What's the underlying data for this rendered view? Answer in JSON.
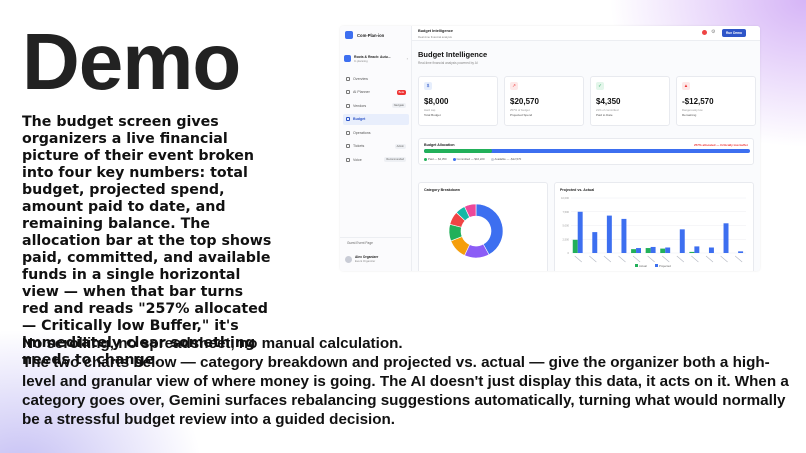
{
  "slide": {
    "title": "Demo",
    "intro": "The budget screen gives organizers a live financial picture of their event broken into four key numbers: total budget, projected spend, amount paid to date, and remaining balance. The allocation bar at the top shows paid, committed, and available funds in a single horizontal view — when that bar turns red and reads \"257% allocated — Critically low Buffer,\" it's immediately clear something needs to change.",
    "bottom_line1": "No scrolling, no spreadsheet, no manual calculation.",
    "bottom_line2": "The two charts below — category breakdown and projected vs. actual — give the organizer both a high-level and granular view of where money is going. The AI doesn't just display this data, it acts on it. When a category goes over, Gemini surfaces rebalancing suggestions automatically, turning what would normally be a stressful budget review into a guided decision."
  },
  "app": {
    "brand": "Com-Plan-ion",
    "org": {
      "name": "Roots & Reach: Autu...",
      "sub": "In planning"
    },
    "nav": [
      {
        "label": "Overview",
        "badge": "",
        "active": false
      },
      {
        "label": "AI Planner",
        "badge": "Beta",
        "active": false
      },
      {
        "label": "Vendors",
        "badge": "Navigate",
        "active": false
      },
      {
        "label": "Budget",
        "badge": "",
        "active": true
      },
      {
        "label": "Operations",
        "badge": "",
        "active": false
      },
      {
        "label": "Tickets",
        "badge": "Admin",
        "active": false
      },
      {
        "label": "Voice",
        "badge": "Recommended",
        "active": false
      }
    ],
    "guest_link": "Guest Event Page",
    "user": {
      "name": "Alex Organizer",
      "role": "Event Organizer"
    },
    "topbar": {
      "title": "Budget Intelligence",
      "subtitle": "Real-time financial analysis",
      "run_demo": "Run Demo"
    },
    "page_title": "Budget Intelligence",
    "page_subtitle": "Real-time financial analysis powered by AI",
    "kpis": [
      {
        "value": "$8,000",
        "line1": "Hard cap",
        "line2": "Total Budget",
        "icon": "$",
        "icon_bg": "#e6eefc",
        "icon_color": "#2e55c8"
      },
      {
        "value": "$20,570",
        "line1": "257% of budget",
        "line2": "Projected Spend",
        "icon": "↗",
        "icon_bg": "#fde8e8",
        "icon_color": "#e33"
      },
      {
        "value": "$4,350",
        "line1": "21% of committed",
        "line2": "Paid to Date",
        "icon": "✓",
        "icon_bg": "#e3f6ea",
        "icon_color": "#22a05a"
      },
      {
        "value": "-$12,570",
        "line1": "Dangerously low",
        "line2": "Remaining",
        "icon": "▲",
        "icon_bg": "#fde8e8",
        "icon_color": "#e33"
      }
    ],
    "allocation": {
      "title": "Budget Allocation",
      "warning": "257% allocated — Critically low buffer",
      "paid_fraction": 0.21,
      "legend": [
        "Paid — $4,350",
        "Committed — $16,220",
        "Available — -$12,570"
      ],
      "colors": {
        "paid": "#22b05a",
        "committed": "#3d6ff0",
        "available": "#d0d4dc"
      }
    },
    "category_breakdown": {
      "title": "Category Breakdown",
      "slices": [
        {
          "value": 42,
          "color": "#3d6ff0"
        },
        {
          "value": 15,
          "color": "#8b5cf6"
        },
        {
          "value": 12,
          "color": "#f59e0b"
        },
        {
          "value": 10,
          "color": "#22b05a"
        },
        {
          "value": 8,
          "color": "#ef4444"
        },
        {
          "value": 6,
          "color": "#14b8a6"
        },
        {
          "value": 7,
          "color": "#ec4899"
        }
      ]
    },
    "projected_vs_actual": {
      "title": "Projected vs. Actual",
      "ylim": [
        0,
        10000
      ],
      "projected": [
        7500,
        3800,
        6800,
        6200,
        900,
        1100,
        1000,
        4300,
        1200,
        1000,
        5400,
        300
      ],
      "actual": [
        2400,
        0,
        0,
        0,
        700,
        900,
        800,
        0,
        200,
        0,
        0,
        0
      ],
      "legend": [
        "Actual",
        "Projected"
      ],
      "colors": {
        "projected": "#3d6ff0",
        "actual": "#22b05a"
      }
    }
  }
}
